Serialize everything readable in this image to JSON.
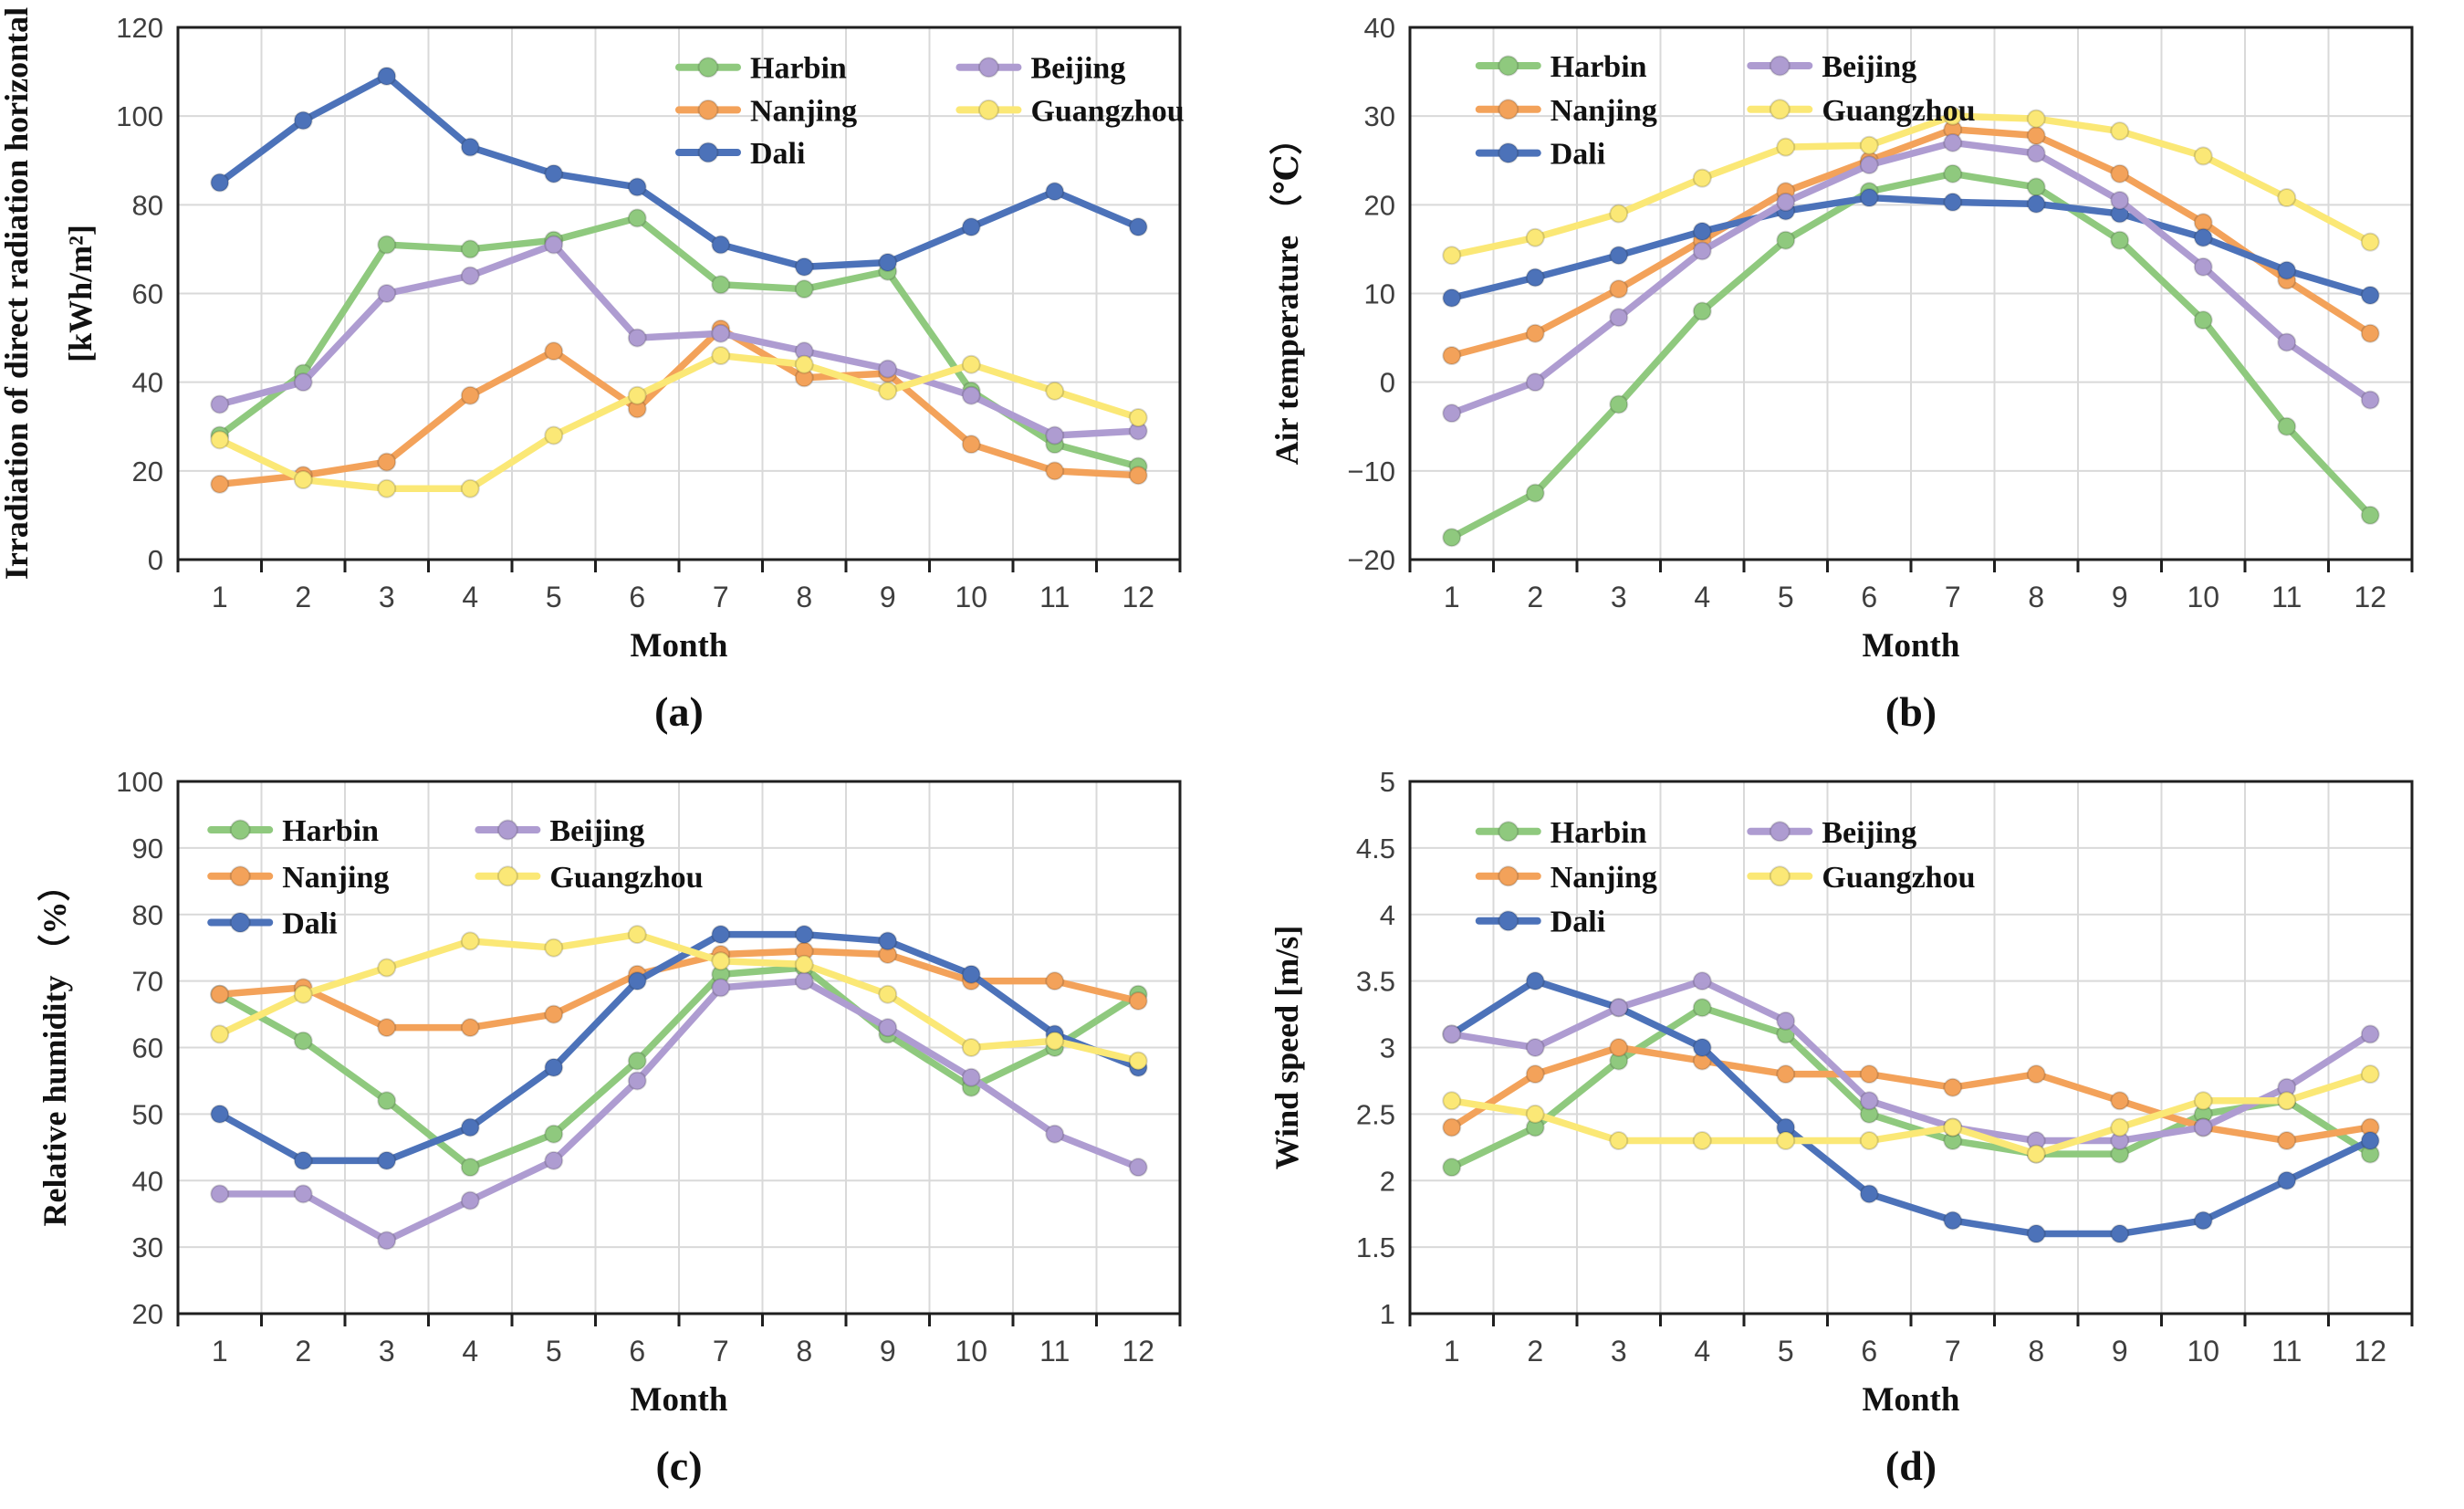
{
  "figure": {
    "background": "#ffffff",
    "grid_color": "#d9d9d9",
    "axis_color": "#1f1f1f",
    "tick_label_color": "#3f3f3f",
    "text_color": "#111111"
  },
  "chart_data": [
    {
      "panel_label": "(a)",
      "type": "line",
      "title": "",
      "ylabel_lines": [
        "Irradiation of direct radiation horizontal",
        "[kWh/m²]"
      ],
      "xlabel": "Month",
      "categories": [
        1,
        2,
        3,
        4,
        5,
        6,
        7,
        8,
        9,
        10,
        11,
        12
      ],
      "ylim": [
        0,
        120
      ],
      "yticks": [
        0,
        20,
        40,
        60,
        80,
        100,
        120
      ],
      "ytick_labels": [
        "0",
        "20",
        "40",
        "60",
        "80",
        "100",
        "120"
      ],
      "grid": true,
      "legend_position": "top-right-inside",
      "series": [
        {
          "name": "Harbin",
          "color": "#8FC97E",
          "values": [
            28,
            42,
            71,
            70,
            72,
            77,
            62,
            61,
            65,
            38,
            26,
            21
          ]
        },
        {
          "name": "Nanjing",
          "color": "#F3A25A",
          "values": [
            17,
            19,
            22,
            37,
            47,
            34,
            52,
            41,
            42,
            26,
            20,
            19
          ]
        },
        {
          "name": "Dali",
          "color": "#4C72B9",
          "values": [
            85,
            99,
            109,
            93,
            87,
            84,
            71,
            66,
            67,
            75,
            83,
            75
          ]
        },
        {
          "name": "Beijing",
          "color": "#AE9CD1",
          "values": [
            35,
            40,
            60,
            64,
            71,
            50,
            51,
            47,
            43,
            37,
            28,
            29
          ]
        },
        {
          "name": "Guangzhou",
          "color": "#FBE876",
          "values": [
            27,
            18,
            16,
            16,
            28,
            37,
            46,
            44,
            38,
            44,
            38,
            32
          ]
        }
      ]
    },
    {
      "panel_label": "(b)",
      "type": "line",
      "title": "",
      "ylabel_lines": [
        "Air temperature （℃）"
      ],
      "xlabel": "Month",
      "categories": [
        1,
        2,
        3,
        4,
        5,
        6,
        7,
        8,
        9,
        10,
        11,
        12
      ],
      "ylim": [
        -20,
        40
      ],
      "yticks": [
        -20,
        -10,
        0,
        10,
        20,
        30,
        40
      ],
      "ytick_labels": [
        "−20",
        "−10",
        "0",
        "10",
        "20",
        "30",
        "40"
      ],
      "grid": true,
      "legend_position": "top-left-inside",
      "series": [
        {
          "name": "Harbin",
          "color": "#8FC97E",
          "values": [
            -17.5,
            -12.5,
            -2.5,
            8,
            16,
            21.5,
            23.5,
            22,
            16,
            7,
            -5,
            -15
          ]
        },
        {
          "name": "Nanjing",
          "color": "#F3A25A",
          "values": [
            3,
            5.5,
            10.5,
            16,
            21.5,
            25,
            28.5,
            27.8,
            23.5,
            18,
            11.5,
            5.5
          ]
        },
        {
          "name": "Dali",
          "color": "#4C72B9",
          "values": [
            9.5,
            11.8,
            14.3,
            17,
            19.3,
            20.8,
            20.3,
            20.1,
            19,
            16.3,
            12.6,
            9.8
          ]
        },
        {
          "name": "Beijing",
          "color": "#AE9CD1",
          "values": [
            -3.5,
            0,
            7.3,
            14.8,
            20.3,
            24.5,
            27,
            25.8,
            20.5,
            13,
            4.5,
            -2
          ]
        },
        {
          "name": "Guangzhou",
          "color": "#FBE876",
          "values": [
            14.3,
            16.3,
            19,
            23,
            26.5,
            26.7,
            30,
            29.7,
            28.3,
            25.5,
            20.8,
            15.8
          ]
        }
      ]
    },
    {
      "panel_label": "(c)",
      "type": "line",
      "title": "",
      "ylabel_lines": [
        "Relative humidity （%）"
      ],
      "xlabel": "Month",
      "categories": [
        1,
        2,
        3,
        4,
        5,
        6,
        7,
        8,
        9,
        10,
        11,
        12
      ],
      "ylim": [
        20,
        100
      ],
      "yticks": [
        20,
        30,
        40,
        50,
        60,
        70,
        80,
        90,
        100
      ],
      "ytick_labels": [
        "20",
        "30",
        "40",
        "50",
        "60",
        "70",
        "80",
        "90",
        "100"
      ],
      "grid": true,
      "legend_position": "top-left-inside",
      "series": [
        {
          "name": "Harbin",
          "color": "#8FC97E",
          "values": [
            68,
            61,
            52,
            42,
            47,
            58,
            71,
            72,
            62,
            54,
            60,
            68
          ]
        },
        {
          "name": "Nanjing",
          "color": "#F3A25A",
          "values": [
            68,
            69,
            63,
            63,
            65,
            71,
            74,
            74.5,
            74,
            70,
            70,
            67
          ]
        },
        {
          "name": "Dali",
          "color": "#4C72B9",
          "values": [
            50,
            43,
            43,
            48,
            57,
            70,
            77,
            77,
            76,
            71,
            62,
            57
          ]
        },
        {
          "name": "Beijing",
          "color": "#AE9CD1",
          "values": [
            38,
            38,
            31,
            37,
            43,
            55,
            69,
            70,
            63,
            55.5,
            47,
            42
          ]
        },
        {
          "name": "Guangzhou",
          "color": "#FBE876",
          "values": [
            62,
            68,
            72,
            76,
            75,
            77,
            73,
            72.5,
            68,
            60,
            61,
            58
          ]
        }
      ]
    },
    {
      "panel_label": "(d)",
      "type": "line",
      "title": "",
      "ylabel_lines": [
        "Wind speed [m/s]"
      ],
      "xlabel": "Month",
      "categories": [
        1,
        2,
        3,
        4,
        5,
        6,
        7,
        8,
        9,
        10,
        11,
        12
      ],
      "ylim": [
        1,
        5
      ],
      "yticks": [
        1,
        1.5,
        2,
        2.5,
        3,
        3.5,
        4,
        4.5,
        5
      ],
      "ytick_labels": [
        "1",
        "1.5",
        "2",
        "2.5",
        "3",
        "3.5",
        "4",
        "4.5",
        "5"
      ],
      "grid": true,
      "legend_position": "top-left-inside",
      "series": [
        {
          "name": "Harbin",
          "color": "#8FC97E",
          "values": [
            2.1,
            2.4,
            2.9,
            3.3,
            3.1,
            2.5,
            2.3,
            2.2,
            2.2,
            2.5,
            2.6,
            2.2
          ]
        },
        {
          "name": "Nanjing",
          "color": "#F3A25A",
          "values": [
            2.4,
            2.8,
            3.0,
            2.9,
            2.8,
            2.8,
            2.7,
            2.8,
            2.6,
            2.4,
            2.3,
            2.4
          ]
        },
        {
          "name": "Dali",
          "color": "#4C72B9",
          "values": [
            3.1,
            3.5,
            3.3,
            3.0,
            2.4,
            1.9,
            1.7,
            1.6,
            1.6,
            1.7,
            2.0,
            2.3
          ]
        },
        {
          "name": "Beijing",
          "color": "#AE9CD1",
          "values": [
            3.1,
            3.0,
            3.3,
            3.5,
            3.2,
            2.6,
            2.4,
            2.3,
            2.3,
            2.4,
            2.7,
            3.1
          ]
        },
        {
          "name": "Guangzhou",
          "color": "#FBE876",
          "values": [
            2.6,
            2.5,
            2.3,
            2.3,
            2.3,
            2.3,
            2.4,
            2.2,
            2.4,
            2.6,
            2.6,
            2.8
          ]
        }
      ]
    }
  ]
}
